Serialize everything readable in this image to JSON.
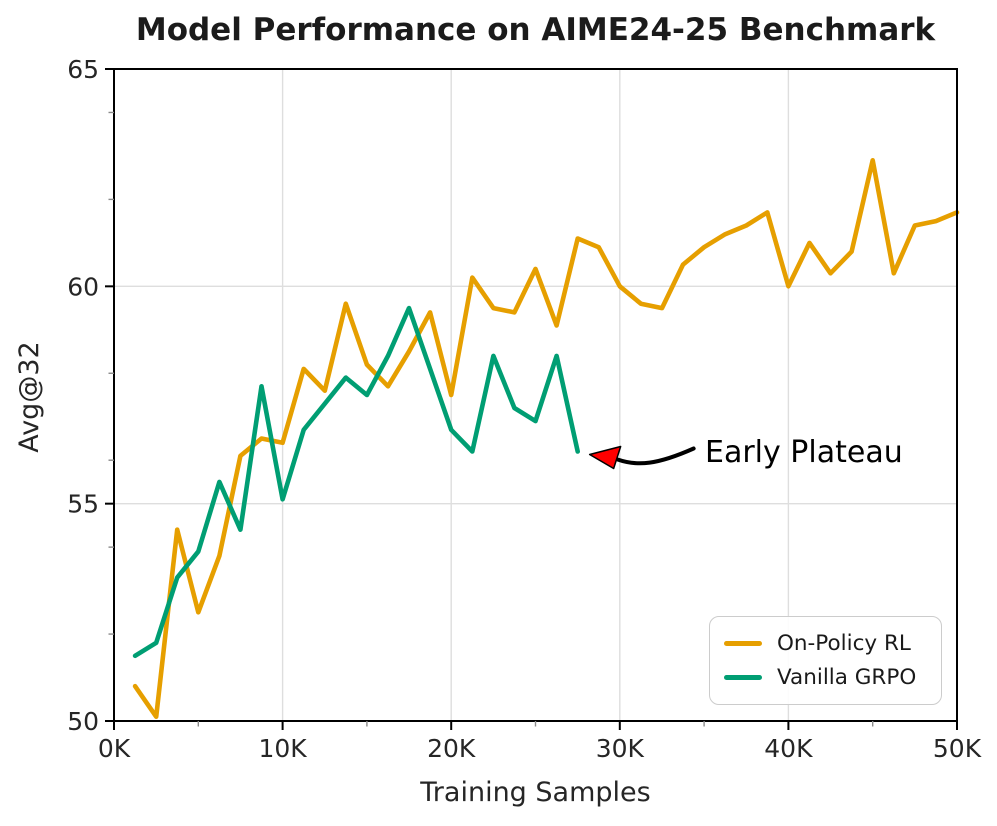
{
  "chart_data": {
    "type": "line",
    "title": "Model Performance on AIME24-25 Benchmark",
    "xlabel": "Training Samples",
    "ylabel": "Avg@32",
    "xlim": [
      0,
      50
    ],
    "ylim": [
      50,
      65
    ],
    "x_unit": "K (thousands of training samples)",
    "grid": "major-only",
    "legend_position": "lower right",
    "x_ticks": {
      "values": [
        0,
        10,
        20,
        30,
        40,
        50
      ],
      "labels": [
        "0K",
        "10K",
        "20K",
        "30K",
        "40K",
        "50K"
      ],
      "minor": [
        5,
        15,
        25,
        35,
        45
      ]
    },
    "y_ticks": {
      "values": [
        50,
        55,
        60,
        65
      ],
      "labels": [
        "50",
        "55",
        "60",
        "65"
      ],
      "minor": [
        52,
        54,
        56,
        58,
        62,
        64
      ]
    },
    "series": [
      {
        "name": "On-Policy RL",
        "color": "#E69F00",
        "x": [
          1.25,
          2.5,
          3.75,
          5,
          6.25,
          7.5,
          8.75,
          10,
          11.25,
          12.5,
          13.75,
          15,
          16.25,
          17.5,
          18.75,
          20,
          21.25,
          22.5,
          23.75,
          25,
          26.25,
          27.5,
          28.75,
          30,
          31.25,
          32.5,
          33.75,
          35,
          36.25,
          37.5,
          38.75,
          40,
          41.25,
          42.5,
          43.75,
          45,
          46.25,
          47.5,
          48.75,
          50
        ],
        "y": [
          50.8,
          50.1,
          54.4,
          52.5,
          53.8,
          56.1,
          56.5,
          56.4,
          58.1,
          57.6,
          59.6,
          58.2,
          57.7,
          58.5,
          59.4,
          57.5,
          60.2,
          59.5,
          59.4,
          60.4,
          59.1,
          61.1,
          60.9,
          60.0,
          59.6,
          59.5,
          60.5,
          60.9,
          61.2,
          61.4,
          61.7,
          60.0,
          61.0,
          60.3,
          60.8,
          62.9,
          60.3,
          61.4,
          61.5,
          61.7
        ]
      },
      {
        "name": "Vanilla GRPO",
        "color": "#009E73",
        "x": [
          1.25,
          2.5,
          3.75,
          5,
          6.25,
          7.5,
          8.75,
          10,
          11.25,
          12.5,
          13.75,
          15,
          16.25,
          17.5,
          18.75,
          20,
          21.25,
          22.5,
          23.75,
          25,
          26.25,
          27.5
        ],
        "y": [
          51.5,
          51.8,
          53.3,
          53.9,
          55.5,
          54.4,
          57.7,
          55.1,
          56.7,
          57.3,
          57.9,
          57.5,
          58.4,
          59.5,
          58.1,
          56.7,
          56.2,
          58.4,
          57.2,
          56.9,
          58.4,
          56.2
        ]
      }
    ],
    "annotation": {
      "text": "Early Plateau",
      "text_color": "#000000",
      "arrow_color": "#000000",
      "arrowhead_color": "#FF0000",
      "points_to": {
        "x": 27.5,
        "y": 56.2
      }
    },
    "colors": {
      "grid": "#DEDEDE",
      "spine": "#000000",
      "text": "#262626",
      "background": "#FFFFFF",
      "minor_tick": "#8A8A8A"
    }
  }
}
